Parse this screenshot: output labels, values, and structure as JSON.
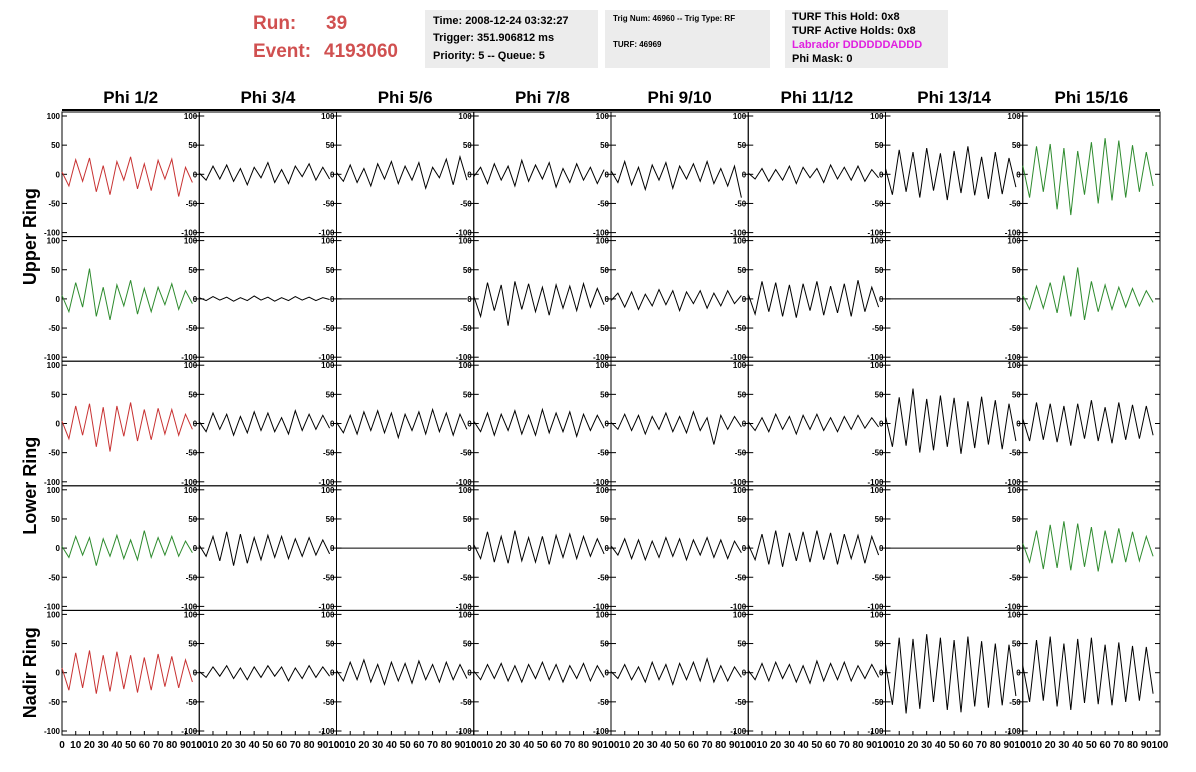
{
  "header": {
    "run_label": "Run:",
    "run": 39,
    "event_label": "Event:",
    "event": 4193060,
    "box1": [
      "Time: 2008-12-24 03:32:27",
      "Trigger: 351.906812 ms",
      "Priority: 5 -- Queue: 5"
    ],
    "box2": [
      "Trig Num: 46960 -- Trig Type: RF",
      "TURF: 46969"
    ],
    "box3": [
      "TURF This Hold: 0x8",
      "TURF Active Holds: 0x8",
      "Labrador DDDDDDADDD",
      "Phi Mask: 0"
    ]
  },
  "columns": [
    "Phi 1/2",
    "Phi 3/4",
    "Phi 5/6",
    "Phi 7/8",
    "Phi 9/10",
    "Phi 11/12",
    "Phi 13/14",
    "Phi 15/16"
  ],
  "rings": [
    "Upper Ring",
    "Lower Ring",
    "Nadir Ring"
  ],
  "xlim": [
    0,
    100
  ],
  "xticks": [
    0,
    10,
    20,
    30,
    40,
    50,
    60,
    70,
    80,
    90,
    100
  ],
  "ylim": [
    -100,
    100
  ],
  "yticks": [
    -100,
    -50,
    0,
    50,
    100
  ],
  "x": [
    0,
    5,
    10,
    15,
    20,
    25,
    30,
    35,
    40,
    45,
    50,
    55,
    60,
    65,
    70,
    75,
    80,
    85,
    90,
    95
  ],
  "panels": [
    [
      {
        "color": "#c83232",
        "values": [
          4,
          -20,
          25,
          -12,
          28,
          -30,
          15,
          -35,
          22,
          -10,
          30,
          -25,
          18,
          -28,
          24,
          -8,
          26,
          -38,
          12,
          -14
        ]
      },
      {
        "color": "#000000",
        "values": [
          2,
          -10,
          14,
          -8,
          16,
          -12,
          10,
          -18,
          12,
          -6,
          20,
          -14,
          8,
          -16,
          14,
          -4,
          18,
          -10,
          12,
          -8
        ]
      },
      {
        "color": "#000000",
        "values": [
          3,
          -12,
          16,
          -14,
          10,
          -20,
          18,
          -8,
          22,
          -16,
          14,
          -10,
          20,
          -24,
          12,
          -6,
          26,
          -18,
          30,
          -10
        ]
      },
      {
        "color": "#000000",
        "values": [
          -4,
          12,
          -16,
          18,
          -10,
          14,
          -20,
          24,
          -12,
          16,
          -8,
          20,
          -22,
          10,
          -14,
          18,
          -10,
          12,
          -16,
          8
        ]
      },
      {
        "color": "#000000",
        "values": [
          6,
          -14,
          22,
          -18,
          12,
          -26,
          16,
          -10,
          20,
          -24,
          14,
          -8,
          18,
          -12,
          22,
          -16,
          10,
          -20,
          14,
          -40
        ]
      },
      {
        "color": "#000000",
        "values": [
          2,
          -8,
          10,
          -12,
          8,
          -10,
          14,
          -16,
          12,
          -6,
          10,
          -14,
          16,
          -8,
          12,
          -10,
          14,
          -12,
          8,
          -6
        ]
      },
      {
        "color": "#000000",
        "values": [
          10,
          -35,
          42,
          -30,
          38,
          -40,
          45,
          -28,
          36,
          -44,
          40,
          -32,
          48,
          -36,
          30,
          -42,
          38,
          -34,
          28,
          -22
        ]
      },
      {
        "color": "#2e8b2e",
        "values": [
          15,
          -40,
          48,
          -30,
          52,
          -60,
          45,
          -70,
          40,
          -35,
          55,
          -50,
          62,
          -45,
          58,
          -40,
          50,
          -30,
          38,
          -20
        ]
      }
    ],
    [
      {
        "color": "#2e8b2e",
        "values": [
          6,
          -22,
          28,
          -14,
          52,
          -30,
          20,
          -36,
          24,
          -12,
          32,
          -26,
          18,
          -22,
          20,
          -10,
          26,
          -18,
          14,
          -8
        ]
      },
      {
        "color": "#000000",
        "values": [
          2,
          -3,
          4,
          -2,
          3,
          -4,
          2,
          -3,
          5,
          -2,
          3,
          -4,
          2,
          -3,
          4,
          -2,
          3,
          -3,
          2,
          -1
        ]
      },
      {
        "color": "#000000",
        "values": [
          0,
          0,
          0,
          0,
          0,
          0,
          0,
          0,
          0,
          0,
          0,
          0,
          0,
          0,
          0,
          0,
          0,
          0,
          0,
          0
        ]
      },
      {
        "color": "#000000",
        "values": [
          5,
          -30,
          28,
          -20,
          24,
          -46,
          30,
          -18,
          26,
          -22,
          20,
          -28,
          24,
          -16,
          22,
          -20,
          26,
          -14,
          18,
          -10
        ]
      },
      {
        "color": "#000000",
        "values": [
          -3,
          10,
          -14,
          12,
          -18,
          8,
          -12,
          16,
          -10,
          14,
          -20,
          12,
          -8,
          14,
          -16,
          10,
          -12,
          14,
          -8,
          6
        ]
      },
      {
        "color": "#000000",
        "values": [
          8,
          -26,
          30,
          -22,
          28,
          -30,
          24,
          -32,
          26,
          -20,
          30,
          -28,
          22,
          -24,
          26,
          -30,
          32,
          -22,
          20,
          -14
        ]
      },
      {
        "color": "#000000",
        "values": [
          0,
          0,
          0,
          0,
          0,
          0,
          0,
          0,
          0,
          0,
          0,
          0,
          0,
          0,
          0,
          0,
          0,
          0,
          0,
          0
        ]
      },
      {
        "color": "#2e8b2e",
        "values": [
          6,
          -18,
          22,
          -16,
          28,
          -24,
          40,
          -30,
          54,
          -36,
          30,
          -22,
          24,
          -18,
          20,
          -14,
          18,
          -12,
          14,
          -6
        ]
      }
    ],
    [
      {
        "color": "#c83232",
        "values": [
          4,
          -26,
          30,
          -20,
          34,
          -40,
          28,
          -48,
          30,
          -22,
          36,
          -30,
          24,
          -28,
          26,
          -18,
          24,
          -20,
          16,
          -10
        ]
      },
      {
        "color": "#000000",
        "values": [
          3,
          -14,
          18,
          -10,
          16,
          -20,
          12,
          -16,
          20,
          -12,
          18,
          -14,
          10,
          -18,
          22,
          -12,
          16,
          -10,
          14,
          -8
        ]
      },
      {
        "color": "#000000",
        "values": [
          2,
          -16,
          14,
          -18,
          20,
          -12,
          22,
          -16,
          18,
          -24,
          16,
          -12,
          20,
          -18,
          24,
          -14,
          18,
          -20,
          16,
          -10
        ]
      },
      {
        "color": "#000000",
        "values": [
          4,
          -14,
          18,
          -20,
          16,
          -12,
          22,
          -18,
          14,
          -20,
          24,
          -16,
          18,
          -14,
          20,
          -22,
          16,
          -12,
          14,
          -8
        ]
      },
      {
        "color": "#000000",
        "values": [
          2,
          -10,
          16,
          -12,
          14,
          -18,
          12,
          -10,
          18,
          -14,
          12,
          -16,
          20,
          -12,
          10,
          -36,
          14,
          -10,
          12,
          -6
        ]
      },
      {
        "color": "#000000",
        "values": [
          3,
          -12,
          10,
          -14,
          16,
          -10,
          12,
          -18,
          14,
          -10,
          16,
          -12,
          10,
          -14,
          12,
          -10,
          14,
          -8,
          10,
          -6
        ]
      },
      {
        "color": "#000000",
        "values": [
          12,
          -40,
          45,
          -38,
          60,
          -50,
          42,
          -46,
          48,
          -40,
          44,
          -52,
          38,
          -42,
          46,
          -36,
          40,
          -44,
          34,
          -30
        ]
      },
      {
        "color": "#000000",
        "values": [
          8,
          -30,
          36,
          -28,
          34,
          -32,
          30,
          -38,
          34,
          -26,
          40,
          -30,
          28,
          -34,
          36,
          -28,
          32,
          -26,
          30,
          -20
        ]
      }
    ],
    [
      {
        "color": "#2e8b2e",
        "values": [
          3,
          -16,
          20,
          -12,
          18,
          -30,
          16,
          -14,
          22,
          -18,
          14,
          -20,
          30,
          -16,
          18,
          -12,
          20,
          -14,
          12,
          -8
        ]
      },
      {
        "color": "#000000",
        "values": [
          5,
          -14,
          20,
          -22,
          28,
          -30,
          24,
          -26,
          18,
          -20,
          22,
          -16,
          20,
          -18,
          16,
          -14,
          18,
          -12,
          14,
          -10
        ]
      },
      {
        "color": "#000000",
        "values": [
          0,
          0,
          0,
          0,
          0,
          0,
          0,
          0,
          0,
          0,
          0,
          0,
          0,
          0,
          0,
          0,
          0,
          0,
          0,
          0
        ]
      },
      {
        "color": "#000000",
        "values": [
          6,
          -18,
          28,
          -24,
          20,
          -26,
          30,
          -22,
          18,
          -24,
          20,
          -28,
          22,
          -16,
          24,
          -18,
          20,
          -14,
          16,
          -10
        ]
      },
      {
        "color": "#000000",
        "values": [
          4,
          -12,
          16,
          -18,
          14,
          -20,
          12,
          -16,
          18,
          -14,
          16,
          -20,
          14,
          -12,
          18,
          -16,
          14,
          -18,
          12,
          -8
        ]
      },
      {
        "color": "#000000",
        "values": [
          6,
          -20,
          24,
          -28,
          30,
          -32,
          26,
          -22,
          28,
          -24,
          30,
          -20,
          26,
          -28,
          24,
          -18,
          22,
          -26,
          20,
          -12
        ]
      },
      {
        "color": "#000000",
        "values": [
          0,
          0,
          0,
          0,
          0,
          0,
          0,
          0,
          0,
          0,
          0,
          0,
          0,
          0,
          0,
          0,
          0,
          0,
          0,
          0
        ]
      },
      {
        "color": "#2e8b2e",
        "values": [
          8,
          -24,
          30,
          -36,
          40,
          -34,
          46,
          -38,
          42,
          -32,
          36,
          -40,
          30,
          -26,
          34,
          -24,
          28,
          -22,
          20,
          -14
        ]
      }
    ],
    [
      {
        "color": "#c83232",
        "values": [
          8,
          -30,
          34,
          -26,
          38,
          -36,
          30,
          -32,
          36,
          -28,
          30,
          -34,
          26,
          -30,
          32,
          -24,
          28,
          -26,
          22,
          -16
        ]
      },
      {
        "color": "#000000",
        "values": [
          2,
          -8,
          10,
          -6,
          12,
          -10,
          8,
          -12,
          10,
          -8,
          12,
          -6,
          10,
          -14,
          8,
          -10,
          12,
          -8,
          10,
          -6
        ]
      },
      {
        "color": "#000000",
        "values": [
          4,
          -14,
          18,
          -12,
          22,
          -16,
          14,
          -20,
          18,
          -14,
          16,
          -18,
          20,
          -12,
          14,
          -16,
          18,
          -12,
          14,
          -10
        ]
      },
      {
        "color": "#000000",
        "values": [
          3,
          -12,
          14,
          -10,
          16,
          -14,
          12,
          -16,
          14,
          -10,
          18,
          -12,
          14,
          -16,
          12,
          -10,
          16,
          -14,
          12,
          -8
        ]
      },
      {
        "color": "#000000",
        "values": [
          2,
          -10,
          14,
          -12,
          10,
          -16,
          18,
          -12,
          14,
          -20,
          16,
          -12,
          18,
          -14,
          24,
          -16,
          12,
          -14,
          10,
          -8
        ]
      },
      {
        "color": "#000000",
        "values": [
          4,
          -12,
          16,
          -14,
          18,
          -10,
          14,
          -16,
          12,
          -18,
          20,
          -14,
          16,
          -12,
          18,
          -14,
          12,
          -10,
          14,
          -8
        ]
      },
      {
        "color": "#000000",
        "values": [
          15,
          -55,
          60,
          -70,
          58,
          -62,
          66,
          -50,
          60,
          -64,
          56,
          -68,
          62,
          -58,
          54,
          -60,
          50,
          -56,
          48,
          -40
        ]
      },
      {
        "color": "#000000",
        "values": [
          12,
          -50,
          56,
          -48,
          62,
          -58,
          50,
          -64,
          58,
          -52,
          60,
          -54,
          48,
          -56,
          52,
          -50,
          46,
          -48,
          44,
          -36
        ]
      }
    ]
  ]
}
